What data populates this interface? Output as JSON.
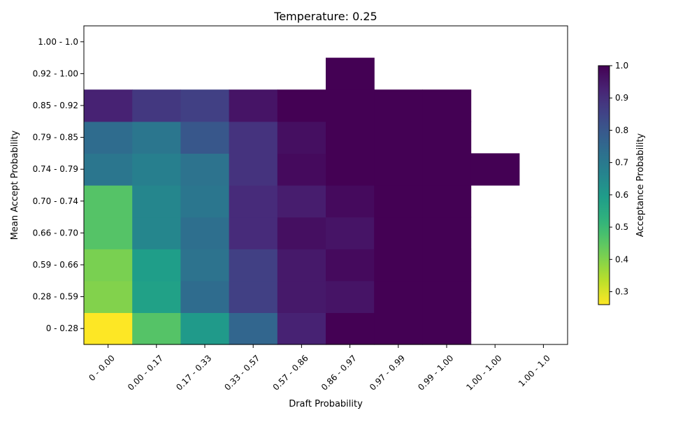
{
  "chart_data": {
    "type": "heatmap",
    "title": "Temperature: 0.25",
    "xlabel": "Draft Probability",
    "ylabel": "Mean Accept Probability",
    "x_categories": [
      "0 - 0.00",
      "0.00 - 0.17",
      "0.17 - 0.33",
      "0.33 - 0.57",
      "0.57 - 0.86",
      "0.86 - 0.97",
      "0.97 - 0.99",
      "0.99 - 1.00",
      "1.00 - 1.00",
      "1.00 - 1.0"
    ],
    "y_categories": [
      "0 - 0.28",
      "0.28 - 0.59",
      "0.59 - 0.66",
      "0.66 - 0.70",
      "0.70 - 0.74",
      "0.74 - 0.79",
      "0.79 - 0.85",
      "0.85 - 0.92",
      "0.92 - 1.00",
      "1.00 - 1.0"
    ],
    "values": [
      [
        0.26,
        0.46,
        0.6,
        0.76,
        0.93,
        1.0,
        1.0,
        1.0,
        null,
        null
      ],
      [
        0.4,
        0.58,
        0.74,
        0.86,
        0.95,
        0.96,
        1.0,
        1.0,
        null,
        null
      ],
      [
        0.41,
        0.59,
        0.72,
        0.86,
        0.95,
        0.98,
        1.0,
        1.0,
        null,
        null
      ],
      [
        0.46,
        0.66,
        0.73,
        0.91,
        0.97,
        0.96,
        1.0,
        1.0,
        null,
        null
      ],
      [
        0.46,
        0.66,
        0.71,
        0.91,
        0.94,
        0.98,
        1.0,
        1.0,
        null,
        null
      ],
      [
        0.71,
        0.68,
        0.72,
        0.89,
        0.98,
        1.0,
        1.0,
        1.0,
        1.0,
        null
      ],
      [
        0.74,
        0.71,
        0.8,
        0.89,
        0.97,
        1.0,
        1.0,
        1.0,
        null,
        null
      ],
      [
        0.93,
        0.88,
        0.86,
        0.96,
        1.0,
        1.0,
        1.0,
        1.0,
        null,
        null
      ],
      [
        null,
        null,
        null,
        null,
        null,
        1.0,
        null,
        null,
        null,
        null
      ],
      [
        null,
        null,
        null,
        null,
        null,
        null,
        null,
        null,
        null,
        null
      ]
    ],
    "colorbar": {
      "label": "Acceptance Probability",
      "range": [
        0.26,
        1.0
      ],
      "ticks": [
        "0.3",
        "0.4",
        "0.5",
        "0.6",
        "0.7",
        "0.8",
        "0.9",
        "1.0"
      ],
      "colormap": "viridis_r"
    }
  }
}
